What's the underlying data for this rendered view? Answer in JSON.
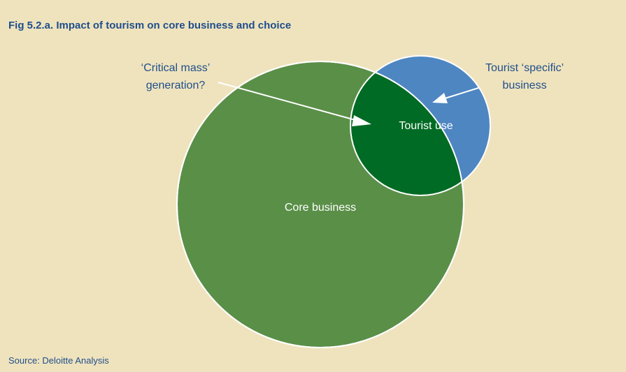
{
  "figure": {
    "title": "Fig 5.2.a. Impact of tourism on core business and choice",
    "source": "Source: Deloitte Analysis"
  },
  "diagram": {
    "core_label": "Core business",
    "tourist_use_label": "Tourist use",
    "critical_mass_line1": "‘Critical mass’",
    "critical_mass_line2": "generation?",
    "tourist_specific_line1": "Tourist ‘specific’",
    "tourist_specific_line2": "business",
    "colors": {
      "background": "#efe3bd",
      "core": "#5a8f48",
      "tourist": "#4e86c2",
      "overlap": "#006b24",
      "outline": "#ffffff",
      "text_blue": "#1f4e8c"
    }
  }
}
